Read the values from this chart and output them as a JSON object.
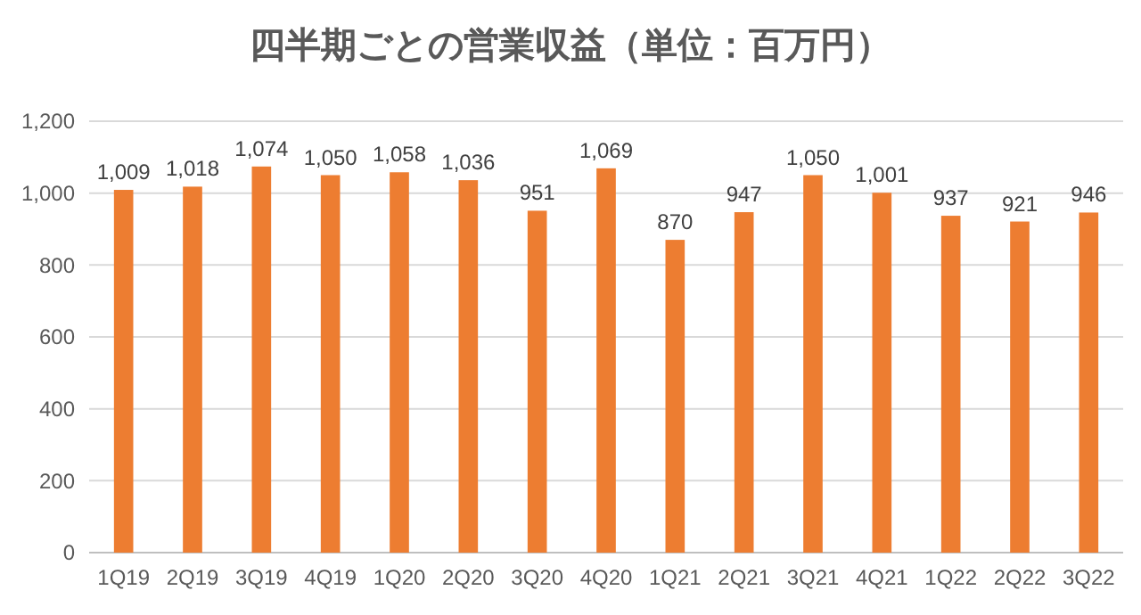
{
  "chart_data": {
    "type": "bar",
    "title": "四半期ごとの営業収益（単位：百万円）",
    "categories": [
      "1Q19",
      "2Q19",
      "3Q19",
      "4Q19",
      "1Q20",
      "2Q20",
      "3Q20",
      "4Q20",
      "1Q21",
      "2Q21",
      "3Q21",
      "4Q21",
      "1Q22",
      "2Q22",
      "3Q22"
    ],
    "values": [
      1009,
      1018,
      1074,
      1050,
      1058,
      1036,
      951,
      1069,
      870,
      947,
      1050,
      1001,
      937,
      921,
      946
    ],
    "value_labels": [
      "1,009",
      "1,018",
      "1,074",
      "1,050",
      "1,058",
      "1,036",
      "951",
      "1,069",
      "870",
      "947",
      "1,050",
      "1,001",
      "937",
      "921",
      "946"
    ],
    "color": "#ed7d31",
    "ylim": [
      0,
      1200
    ],
    "yticks": [
      0,
      200,
      400,
      600,
      800,
      {
        "value": 1000,
        "label": "1,000"
      },
      {
        "value": 1200,
        "label": "1,200"
      }
    ],
    "grid": "y"
  }
}
